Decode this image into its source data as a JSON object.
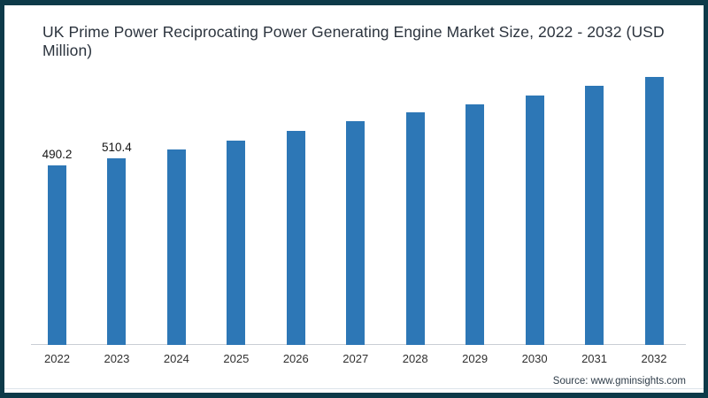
{
  "title": "UK Prime Power Reciprocating Power Generating Engine Market Size, 2022 - 2032 (USD Million)",
  "source": "Source: www.gminsights.com",
  "colors": {
    "bar": "#2d77b6",
    "frame_border": "#0d3a49",
    "axis_line": "#c9ced4",
    "title_text": "#2b333d",
    "background": "#ffffff"
  },
  "chart_data": {
    "type": "bar",
    "title": "UK Prime Power Reciprocating Power Generating Engine Market Size, 2022 - 2032 (USD Million)",
    "xlabel": "",
    "ylabel": "",
    "categories": [
      "2022",
      "2023",
      "2024",
      "2025",
      "2026",
      "2027",
      "2028",
      "2029",
      "2030",
      "2031",
      "2032"
    ],
    "values": [
      490.2,
      510.4,
      533,
      558,
      585,
      610,
      636,
      658,
      680,
      708,
      731
    ],
    "data_labels": [
      "490.2",
      "510.4",
      "",
      "",
      "",
      "",
      "",
      "",
      "",
      "",
      ""
    ],
    "ylim": [
      0,
      760
    ],
    "grid": false,
    "legend": "none",
    "y_axis_shown": false,
    "bar_color": "#2d77b6"
  }
}
